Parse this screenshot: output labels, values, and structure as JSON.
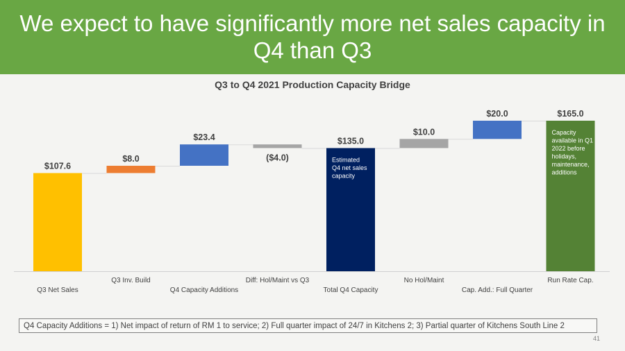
{
  "header": {
    "title": "We expect to have significantly more net sales capacity in Q4 than Q3"
  },
  "chart_data": {
    "type": "bar",
    "subtype": "waterfall",
    "title": "Q3 to Q4 2021 Production Capacity Bridge",
    "categories": [
      "Q3 Net Sales",
      "Q3 Inv. Build",
      "Q4 Capacity Additions",
      "Diff: Hol/Maint vs Q3",
      "Total Q4 Capacity",
      "No Hol/Maint",
      "Cap. Add.: Full Quarter",
      "Run Rate Cap."
    ],
    "values": [
      107.6,
      8.0,
      23.4,
      -4.0,
      135.0,
      10.0,
      20.0,
      165.0
    ],
    "bar_kinds": [
      "total",
      "delta",
      "delta",
      "delta",
      "total",
      "delta",
      "delta",
      "total"
    ],
    "data_labels": [
      "$107.6",
      "$8.0",
      "$23.4",
      "($4.0)",
      "$135.0",
      "$10.0",
      "$20.0",
      "$165.0"
    ],
    "colors": [
      "#ffc000",
      "#ed7d31",
      "#4472c4",
      "#a5a5a5",
      "#002060",
      "#a5a5a5",
      "#4472c4",
      "#548235"
    ],
    "annotations": [
      {
        "bar_index": 4,
        "text": [
          "Estimated",
          "Q4 net sales",
          "capacity"
        ]
      },
      {
        "bar_index": 7,
        "text": [
          "Capacity",
          "available in Q1",
          "2022 before",
          "holidays,",
          "maintenance,",
          "additions"
        ]
      }
    ],
    "ylim": [
      0,
      165
    ],
    "xlabel": "",
    "ylabel": "",
    "grid": false,
    "legend": "none"
  },
  "footnote": "Q4 Capacity Additions = 1) Net impact of return of RM 1 to service; 2) Full quarter impact of 24/7 in Kitchens 2; 3) Partial quarter of Kitchens South Line 2",
  "page_number": "41"
}
